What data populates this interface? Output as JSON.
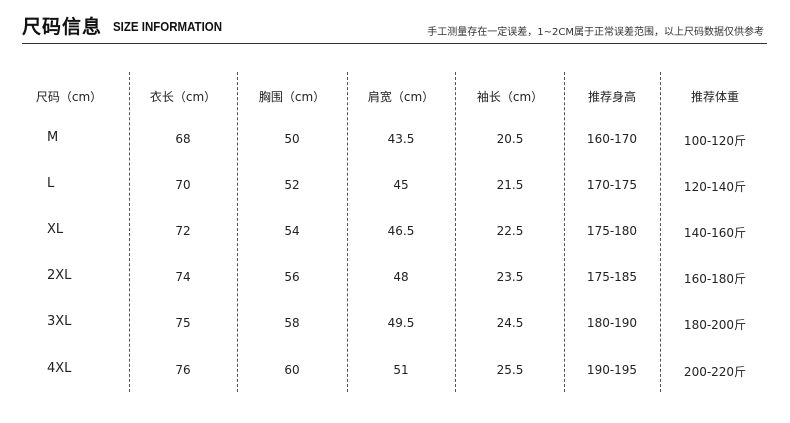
{
  "header": {
    "title_cn": "尺码信息",
    "title_en": "SIZE INFORMATION",
    "note": "手工测量存在一定误差，1~2CM属于正常误差范围，以上尺码数据仅供参考"
  },
  "table": {
    "columns": [
      "尺码（cm）",
      "衣长（cm）",
      "胸围（cm）",
      "肩宽（cm）",
      "袖长（cm）",
      "推荐身高",
      "推荐体重"
    ],
    "rows": [
      [
        "M",
        "68",
        "50",
        "43.5",
        "20.5",
        "160-170",
        "100-120斤"
      ],
      [
        "L",
        "70",
        "52",
        "45",
        "21.5",
        "170-175",
        "120-140斤"
      ],
      [
        "XL",
        "72",
        "54",
        "46.5",
        "22.5",
        "175-180",
        "140-160斤"
      ],
      [
        "2XL",
        "74",
        "56",
        "48",
        "23.5",
        "175-185",
        "160-180斤"
      ],
      [
        "3XL",
        "75",
        "58",
        "49.5",
        "24.5",
        "180-190",
        "180-200斤"
      ],
      [
        "4XL",
        "76",
        "60",
        "51",
        "25.5",
        "190-195",
        "200-220斤"
      ]
    ]
  }
}
